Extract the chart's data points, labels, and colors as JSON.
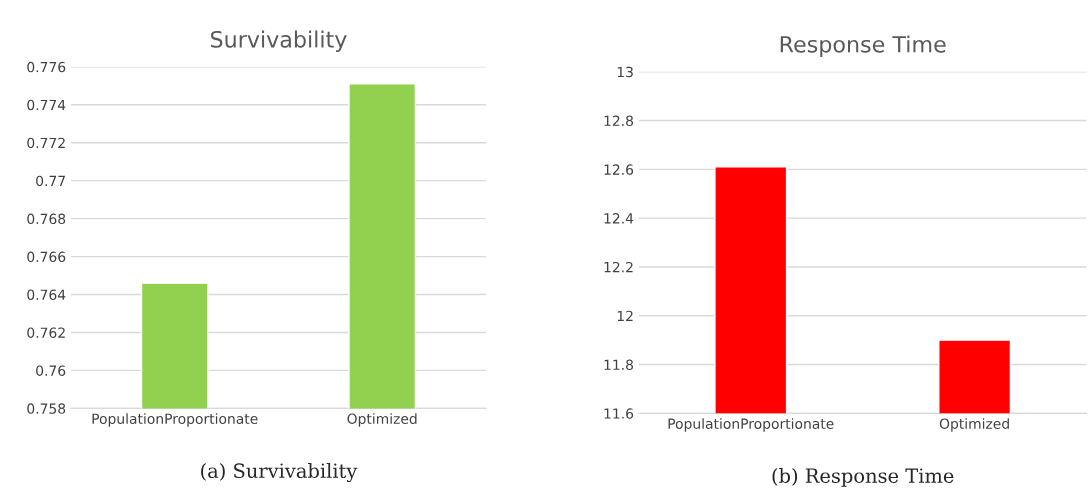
{
  "chart_data": [
    {
      "type": "bar",
      "title": "Survivability",
      "categories": [
        "PopulationProportionate",
        "Optimized"
      ],
      "values": [
        0.7646,
        0.7751
      ],
      "color": "#92d050",
      "ylim": [
        0.758,
        0.776
      ],
      "yticks": [
        0.758,
        0.76,
        0.762,
        0.764,
        0.766,
        0.768,
        0.77,
        0.772,
        0.774,
        0.776
      ],
      "grid": "y",
      "annotations": [
        "(a) Survivability"
      ]
    },
    {
      "type": "bar",
      "title": "Response Time",
      "categories": [
        "PopulationProportionate",
        "Optimized"
      ],
      "values": [
        12.61,
        11.9
      ],
      "color": "#ff0000",
      "ylim": [
        11.6,
        13
      ],
      "yticks": [
        11.6,
        11.8,
        12,
        12.2,
        12.4,
        12.6,
        12.8,
        13
      ],
      "grid": "y",
      "annotations": [
        "(b) Response Time"
      ]
    }
  ]
}
